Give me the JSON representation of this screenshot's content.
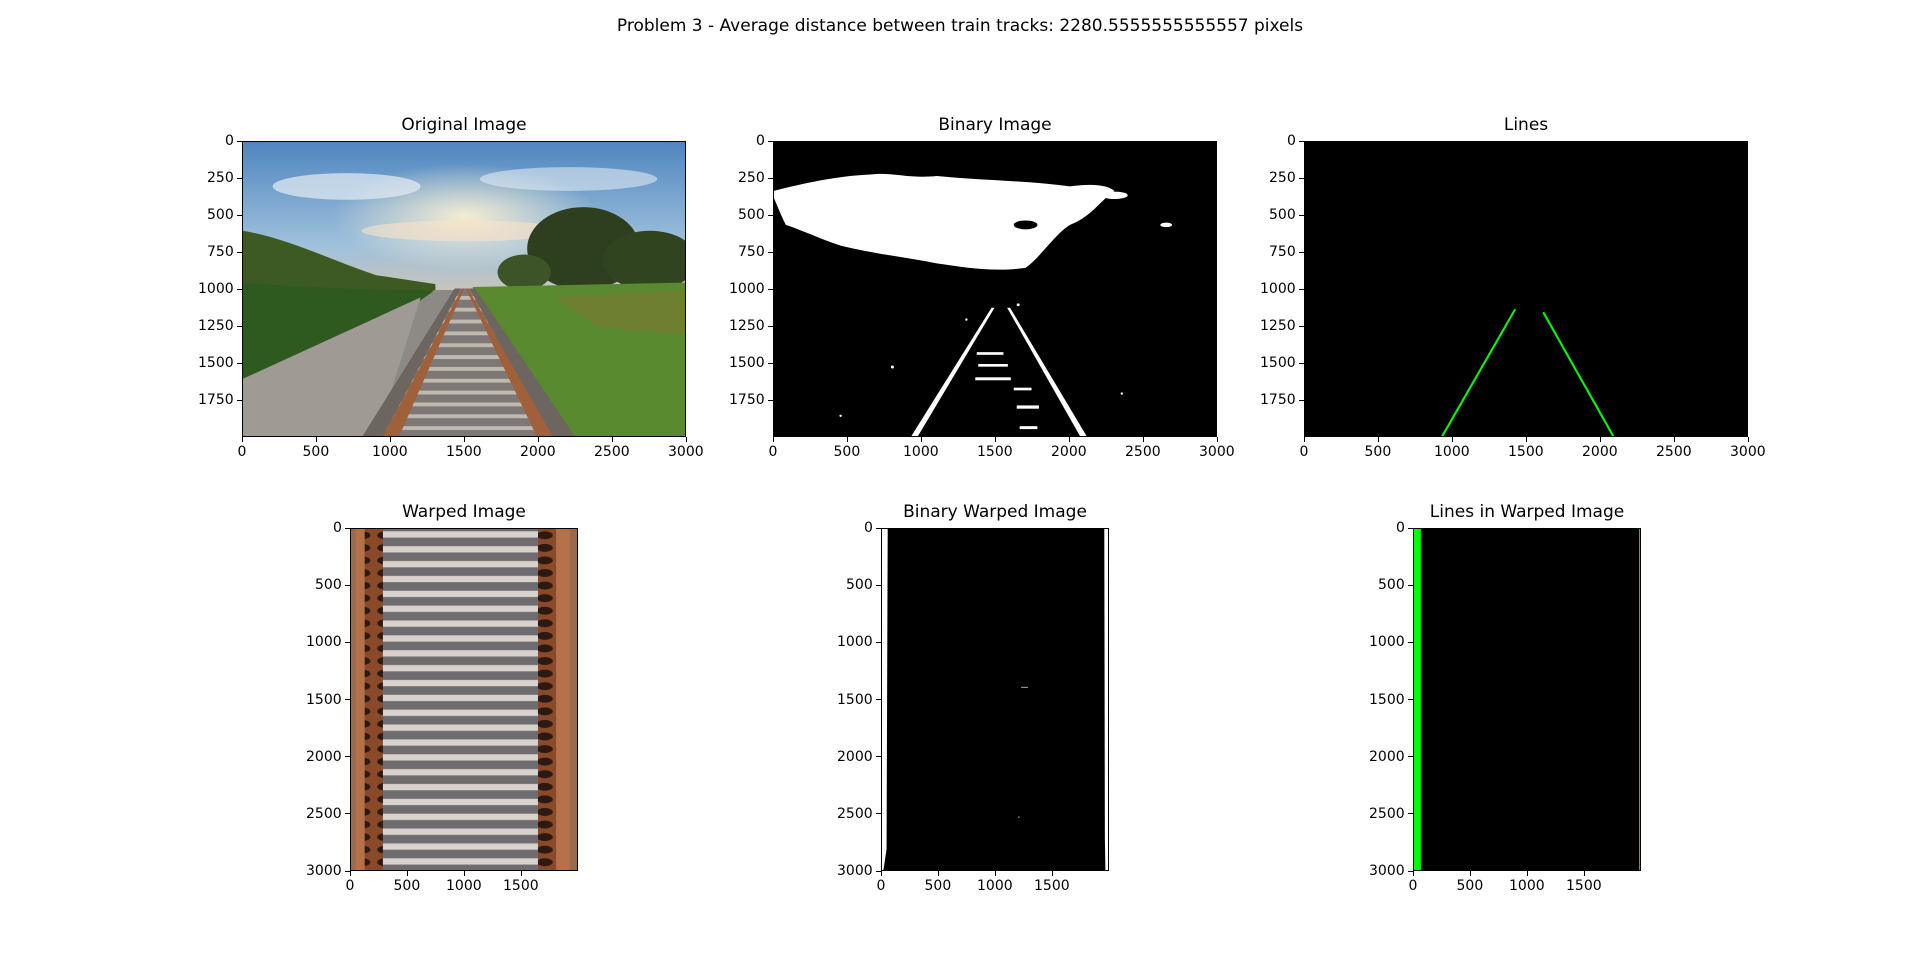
{
  "figure": {
    "title": "Problem 3 - Average distance between train tracks: 2280.5555555555557 pixels"
  },
  "panels": [
    {
      "id": "original",
      "title": "Original Image",
      "content": "photo",
      "xticks": [
        "0",
        "500",
        "1000",
        "1500",
        "2000",
        "2500",
        "3000"
      ],
      "yticks": [
        "0",
        "250",
        "500",
        "750",
        "1000",
        "1250",
        "1500",
        "1750"
      ],
      "xlim": [
        0,
        3000
      ],
      "ylim": [
        2000,
        0
      ]
    },
    {
      "id": "binary",
      "title": "Binary Image",
      "content": "binary",
      "xticks": [
        "0",
        "500",
        "1000",
        "1500",
        "2000",
        "2500",
        "3000"
      ],
      "yticks": [
        "0",
        "250",
        "500",
        "750",
        "1000",
        "1250",
        "1500",
        "1750"
      ],
      "xlim": [
        0,
        3000
      ],
      "ylim": [
        2000,
        0
      ]
    },
    {
      "id": "lines",
      "title": "Lines",
      "content": "lines",
      "xticks": [
        "0",
        "500",
        "1000",
        "1500",
        "2000",
        "2500",
        "3000"
      ],
      "yticks": [
        "0",
        "250",
        "500",
        "750",
        "1000",
        "1250",
        "1500",
        "1750"
      ],
      "xlim": [
        0,
        3000
      ],
      "ylim": [
        2000,
        0
      ],
      "line_color": "#00ff00"
    },
    {
      "id": "warped",
      "title": "Warped Image",
      "content": "warped",
      "xticks": [
        "0",
        "500",
        "1000",
        "1500"
      ],
      "yticks": [
        "0",
        "500",
        "1000",
        "1500",
        "2000",
        "2500",
        "3000"
      ],
      "xlim": [
        0,
        2000
      ],
      "ylim": [
        3000,
        0
      ]
    },
    {
      "id": "binary-warped",
      "title": "Binary Warped Image",
      "content": "binary-warped",
      "xticks": [
        "0",
        "500",
        "1000",
        "1500"
      ],
      "yticks": [
        "0",
        "500",
        "1000",
        "1500",
        "2000",
        "2500",
        "3000"
      ],
      "xlim": [
        0,
        2000
      ],
      "ylim": [
        3000,
        0
      ]
    },
    {
      "id": "lines-warped",
      "title": "Lines in Warped Image",
      "content": "lines-warped",
      "xticks": [
        "0",
        "500",
        "1000",
        "1500"
      ],
      "yticks": [
        "0",
        "500",
        "1000",
        "1500",
        "2000",
        "2500",
        "3000"
      ],
      "xlim": [
        0,
        2000
      ],
      "ylim": [
        3000,
        0
      ],
      "line_color": "#00ff00"
    }
  ]
}
